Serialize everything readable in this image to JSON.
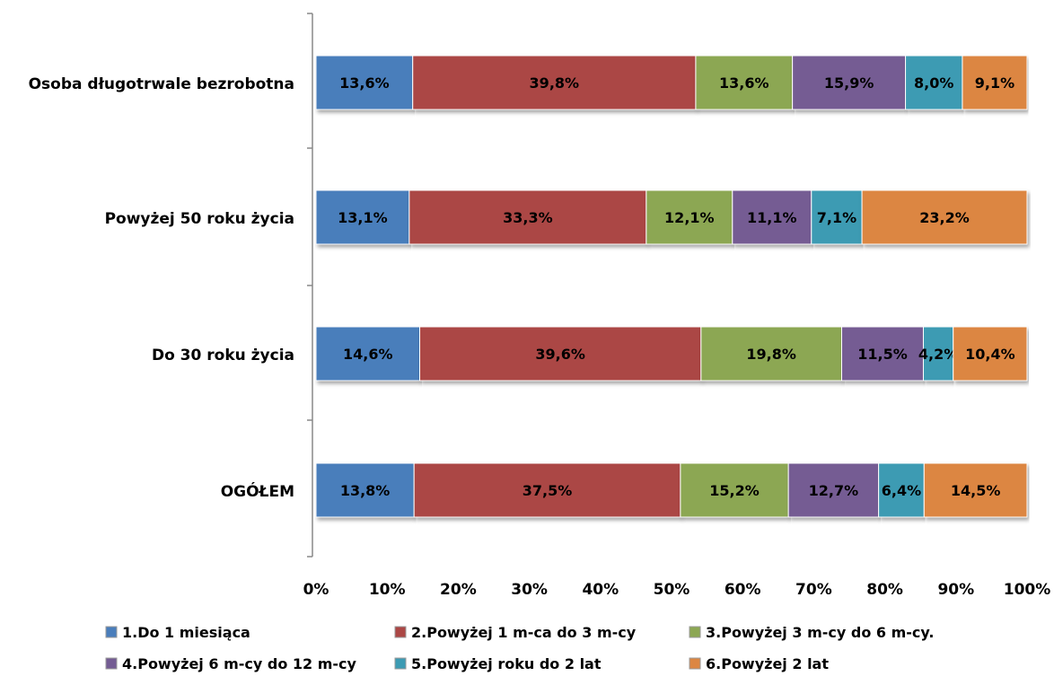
{
  "chart_data": {
    "type": "bar",
    "orientation": "horizontal",
    "stacked": "percent",
    "categories": [
      "Osoba długotrwale  bezrobotna",
      "Powyżej 50 roku życia",
      "Do 30 roku życia",
      "OGÓŁEM"
    ],
    "series": [
      {
        "name": "1.Do 1 miesiąca",
        "color": "#4A7EBB",
        "values": [
          13.6,
          13.1,
          14.6,
          13.8
        ],
        "labels": [
          "13,6%",
          "13,1%",
          "14,6%",
          "13,8%"
        ]
      },
      {
        "name": "2.Powyżej 1 m-ca do 3 m-cy",
        "color": "#AB4745",
        "values": [
          39.8,
          33.3,
          39.6,
          37.5
        ],
        "labels": [
          "39,8%",
          "33,3%",
          "39,6%",
          "37,5%"
        ]
      },
      {
        "name": "3.Powyżej 3 m-cy do 6 m-cy.",
        "color": "#8CA753",
        "values": [
          13.6,
          12.1,
          19.8,
          15.2
        ],
        "labels": [
          "13,6%",
          "12,1%",
          "19,8%",
          "15,2%"
        ]
      },
      {
        "name": "4.Powyżej 6 m-cy do 12 m-cy",
        "color": "#745C93",
        "values": [
          15.9,
          11.1,
          11.5,
          12.7
        ],
        "labels": [
          "15,9%",
          "11,1%",
          "11,5%",
          "12,7%"
        ]
      },
      {
        "name": "5.Powyżej roku do 2 lat",
        "color": "#3D9BB3",
        "values": [
          8.0,
          7.1,
          4.2,
          6.4
        ],
        "labels": [
          "8,0%",
          "7,1%",
          "4,2%",
          "6,4%"
        ]
      },
      {
        "name": "6.Powyżej 2 lat",
        "color": "#DC8642",
        "values": [
          9.1,
          23.2,
          10.4,
          14.5
        ],
        "labels": [
          "9,1%",
          "23,2%",
          "10,4%",
          "14,5%"
        ]
      }
    ],
    "x_ticks": [
      "0%",
      "10%",
      "20%",
      "30%",
      "40%",
      "50%",
      "60%",
      "70%",
      "80%",
      "90%",
      "100%"
    ],
    "xlim": [
      0,
      100
    ],
    "title": "",
    "xlabel": "",
    "ylabel": "",
    "grid": false,
    "legend_position": "bottom"
  }
}
